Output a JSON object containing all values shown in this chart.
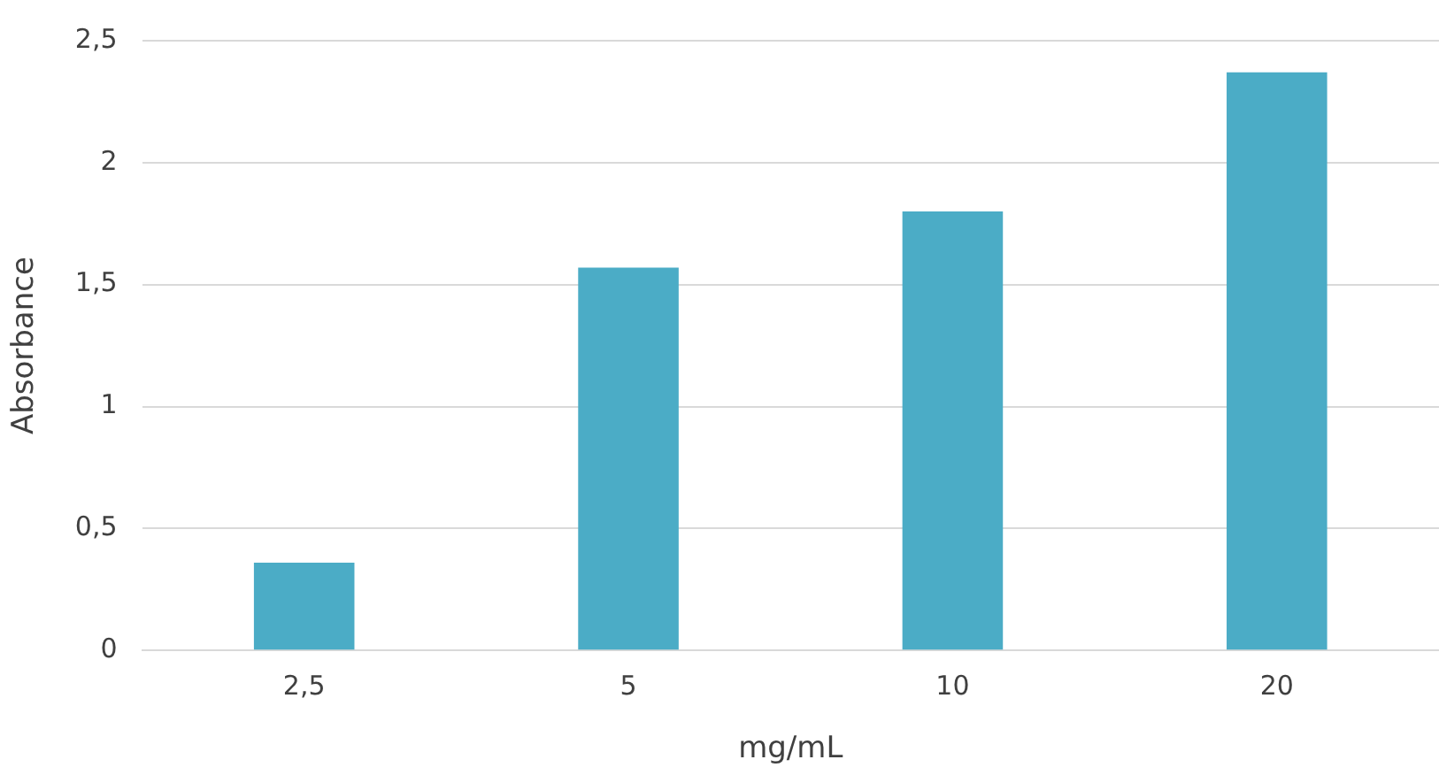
{
  "chart_data": {
    "type": "bar",
    "xlabel": "mg/mL",
    "ylabel": "Absorbance",
    "categories": [
      "2,5",
      "5",
      "10",
      "20"
    ],
    "values": [
      0.36,
      1.57,
      1.8,
      2.37
    ],
    "color": "#4bacc6",
    "ylim": [
      0,
      2.5
    ],
    "yticks": [
      0,
      {
        "value": 0.5,
        "label": "0,5"
      },
      1,
      {
        "value": 1.5,
        "label": "1,5"
      },
      2,
      {
        "value": 2.5,
        "label": "2,5"
      }
    ],
    "grid": "y",
    "legend": false
  }
}
